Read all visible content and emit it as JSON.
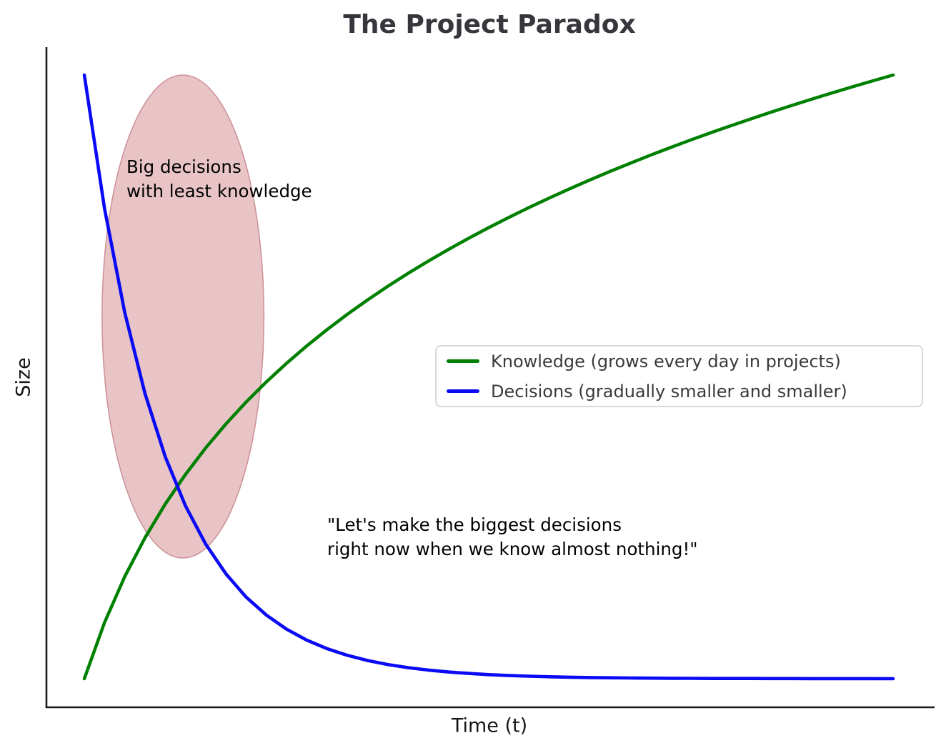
{
  "chart_data": {
    "type": "line",
    "title": "The Project Paradox",
    "xlabel": "Time (t)",
    "ylabel": "Size",
    "xlim": [
      0,
      10
    ],
    "ylim": [
      0,
      1
    ],
    "grid": false,
    "axis_ticks_visible": false,
    "legend_position": "center-right",
    "x": [
      0,
      0.25,
      0.5,
      0.75,
      1,
      1.25,
      1.5,
      1.75,
      2,
      2.25,
      2.5,
      2.75,
      3,
      3.25,
      3.5,
      3.75,
      4,
      4.25,
      4.5,
      4.75,
      5,
      5.25,
      5.5,
      5.75,
      6,
      6.25,
      6.5,
      6.75,
      7,
      7.25,
      7.5,
      7.75,
      8,
      8.25,
      8.5,
      8.75,
      9,
      9.25,
      9.5,
      9.75,
      10
    ],
    "series": [
      {
        "name": "Knowledge (grows every day in projects)",
        "color": "#008000",
        "shape": "logarithmic growth ln(1+t)/ln(11)",
        "values": [
          0.0,
          0.093,
          0.1691,
          0.2334,
          0.2891,
          0.3382,
          0.3821,
          0.4219,
          0.4582,
          0.4916,
          0.5224,
          0.5512,
          0.5781,
          0.6034,
          0.6272,
          0.6498,
          0.6712,
          0.6915,
          0.7109,
          0.7295,
          0.7472,
          0.7643,
          0.7806,
          0.7963,
          0.8115,
          0.8261,
          0.8403,
          0.8539,
          0.8672,
          0.88,
          0.8925,
          0.9046,
          0.9163,
          0.9277,
          0.9389,
          0.9497,
          0.9602,
          0.9705,
          0.9806,
          0.9904,
          1.0
        ]
      },
      {
        "name": "Decisions (gradually smaller and smaller)",
        "color": "#0a0af5",
        "shape": "exponential decay exp(-t)",
        "values": [
          1.0,
          0.7788,
          0.6065,
          0.4724,
          0.3679,
          0.2865,
          0.2231,
          0.1738,
          0.1353,
          0.1054,
          0.0821,
          0.0639,
          0.0498,
          0.0388,
          0.0302,
          0.0235,
          0.0183,
          0.0143,
          0.0111,
          0.0087,
          0.0067,
          0.0052,
          0.0041,
          0.0032,
          0.0025,
          0.0019,
          0.0015,
          0.0012,
          0.0009,
          0.0007,
          0.0006,
          0.0004,
          0.0003,
          0.0003,
          0.0002,
          0.0002,
          0.0001,
          0.0001,
          0.0001,
          0.0001,
          0.0
        ]
      }
    ],
    "annotations": [
      {
        "type": "ellipse",
        "label": "big-decisions-least-knowledge-highlight",
        "x": 1.22,
        "y": 0.6,
        "rx": 1.0,
        "ry": 0.4,
        "fill": "#e8c4c7",
        "stroke": "#cd9398"
      },
      {
        "type": "text",
        "text": "Big decisions\nwith least knowledge",
        "x": 0.521,
        "y": 0.868
      },
      {
        "type": "text",
        "text": "\"Let's make the biggest decisions\nright now when we know almost nothing!\"",
        "x": 3.0,
        "y": 0.275
      }
    ]
  },
  "colors": {
    "background": "#ffffff",
    "spine": "#1b1b1b",
    "title_text": "#36363c",
    "legend_border": "#d8d8d8",
    "annotation_text": "#000000"
  }
}
